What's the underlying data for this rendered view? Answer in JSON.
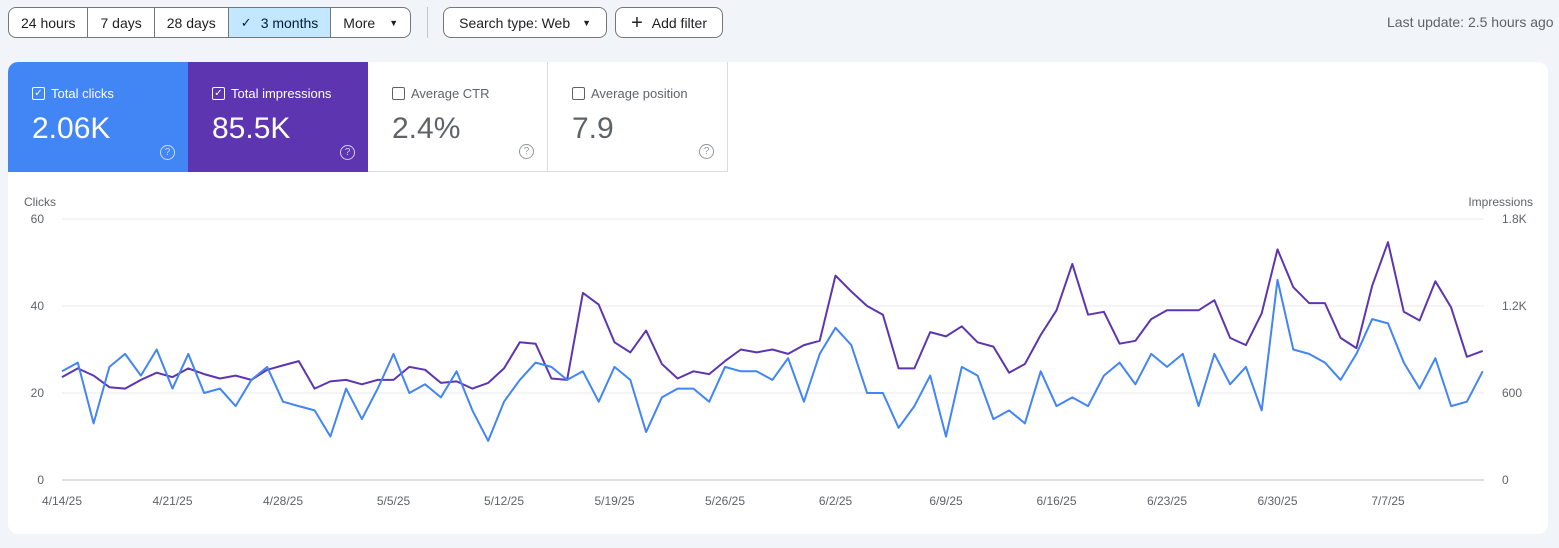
{
  "toolbar": {
    "ranges": [
      "24 hours",
      "7 days",
      "28 days",
      "3 months"
    ],
    "active_range": "3 months",
    "more_label": "More",
    "search_type_label": "Search type: Web",
    "add_filter_label": "Add filter"
  },
  "last_update": "Last update: 2.5 hours ago",
  "metrics": {
    "clicks": {
      "label": "Total clicks",
      "value": "2.06K",
      "checked": true
    },
    "impressions": {
      "label": "Total impressions",
      "value": "85.5K",
      "checked": true
    },
    "ctr": {
      "label": "Average CTR",
      "value": "2.4%",
      "checked": false
    },
    "position": {
      "label": "Average position",
      "value": "7.9",
      "checked": false
    }
  },
  "colors": {
    "clicks": "#4285f4",
    "impressions": "#5e35b1",
    "gridline": "#e8eaed"
  },
  "chart_data": {
    "type": "line",
    "left_axis_label": "Clicks",
    "right_axis_label": "Impressions",
    "left_ylim": [
      0,
      60
    ],
    "right_ylim": [
      0,
      1800
    ],
    "left_ticks": [
      "0",
      "20",
      "40",
      "60"
    ],
    "right_ticks": [
      "0",
      "600",
      "1.2K",
      "1.8K"
    ],
    "x_ticks": [
      "4/14/25",
      "4/21/25",
      "4/28/25",
      "5/5/25",
      "5/12/25",
      "5/19/25",
      "5/26/25",
      "6/2/25",
      "6/9/25",
      "6/16/25",
      "6/23/25",
      "6/30/25",
      "7/7/25"
    ],
    "x_start": "4/14/25",
    "grid": true,
    "series": [
      {
        "name": "Total clicks",
        "axis": "left",
        "values": [
          25,
          27,
          13,
          26,
          29,
          24,
          30,
          21,
          29,
          20,
          21,
          17,
          23,
          26,
          18,
          17,
          16,
          10,
          21,
          14,
          21,
          29,
          20,
          22,
          19,
          25,
          16,
          9,
          18,
          23,
          27,
          26,
          23,
          25,
          18,
          26,
          23,
          11,
          19,
          21,
          21,
          18,
          26,
          25,
          25,
          23,
          28,
          18,
          29,
          35,
          31,
          20,
          20,
          12,
          17,
          24,
          10,
          26,
          24,
          14,
          16,
          13,
          25,
          17,
          19,
          17,
          24,
          27,
          22,
          29,
          26,
          29,
          17,
          29,
          22,
          26,
          16,
          46,
          30,
          29,
          27,
          23,
          29,
          37,
          36,
          27,
          21,
          28,
          17,
          18,
          25
        ]
      },
      {
        "name": "Total impressions",
        "axis": "right",
        "values": [
          710,
          770,
          720,
          640,
          630,
          690,
          740,
          710,
          770,
          730,
          700,
          720,
          690,
          760,
          790,
          820,
          630,
          680,
          690,
          660,
          690,
          690,
          780,
          760,
          670,
          680,
          630,
          670,
          770,
          950,
          940,
          700,
          690,
          1290,
          1210,
          950,
          880,
          1030,
          800,
          700,
          750,
          730,
          820,
          900,
          880,
          900,
          870,
          930,
          960,
          1410,
          1300,
          1200,
          1140,
          770,
          770,
          1020,
          990,
          1060,
          950,
          920,
          740,
          800,
          1000,
          1170,
          1490,
          1140,
          1160,
          940,
          960,
          1110,
          1170,
          1170,
          1170,
          1240,
          980,
          930,
          1150,
          1590,
          1330,
          1220,
          1220,
          980,
          910,
          1340,
          1640,
          1160,
          1100,
          1370,
          1190,
          850,
          890
        ]
      }
    ]
  }
}
